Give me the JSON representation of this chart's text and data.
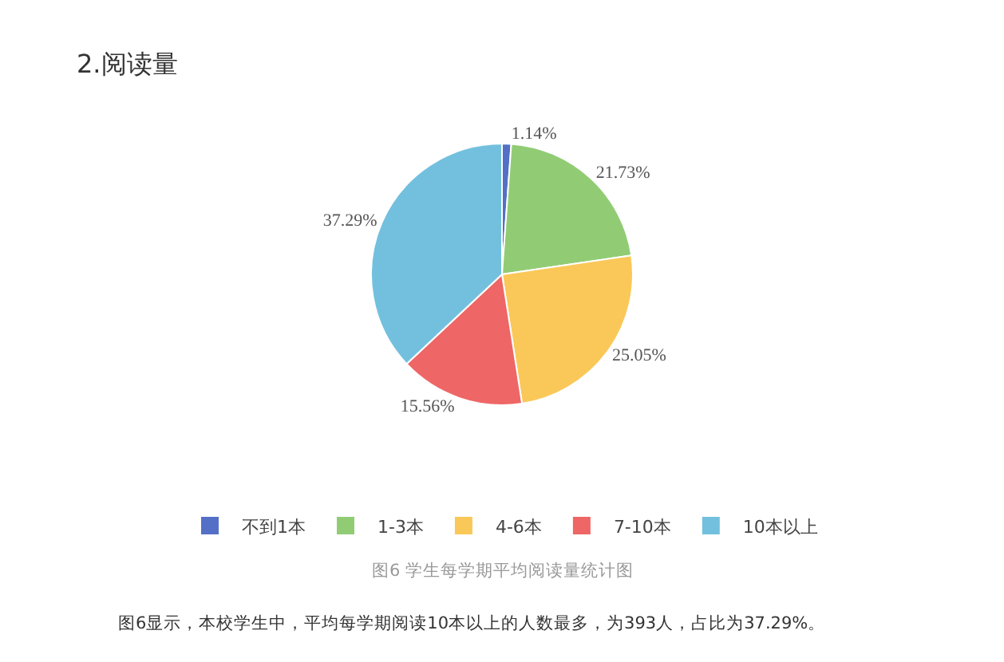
{
  "chart_data": {
    "type": "pie",
    "title": "2.阅读量",
    "categories": [
      "不到1本",
      "1-3本",
      "4-6本",
      "7-10本",
      "10本以上"
    ],
    "values": [
      1.14,
      21.73,
      25.05,
      15.56,
      37.29
    ],
    "colors": [
      "#5470c6",
      "#91cc75",
      "#fac858",
      "#ee6666",
      "#73c0de"
    ],
    "value_labels": [
      "1.14%",
      "21.73%",
      "25.05%",
      "15.56%",
      "37.29%"
    ],
    "legend": "bottom",
    "annotations": [
      "图6 学生每学期平均阅读量统计图",
      "图6显示，本校学生中，平均每学期阅读10本以上的人数最多，为393人，占比为37.29%。"
    ]
  }
}
